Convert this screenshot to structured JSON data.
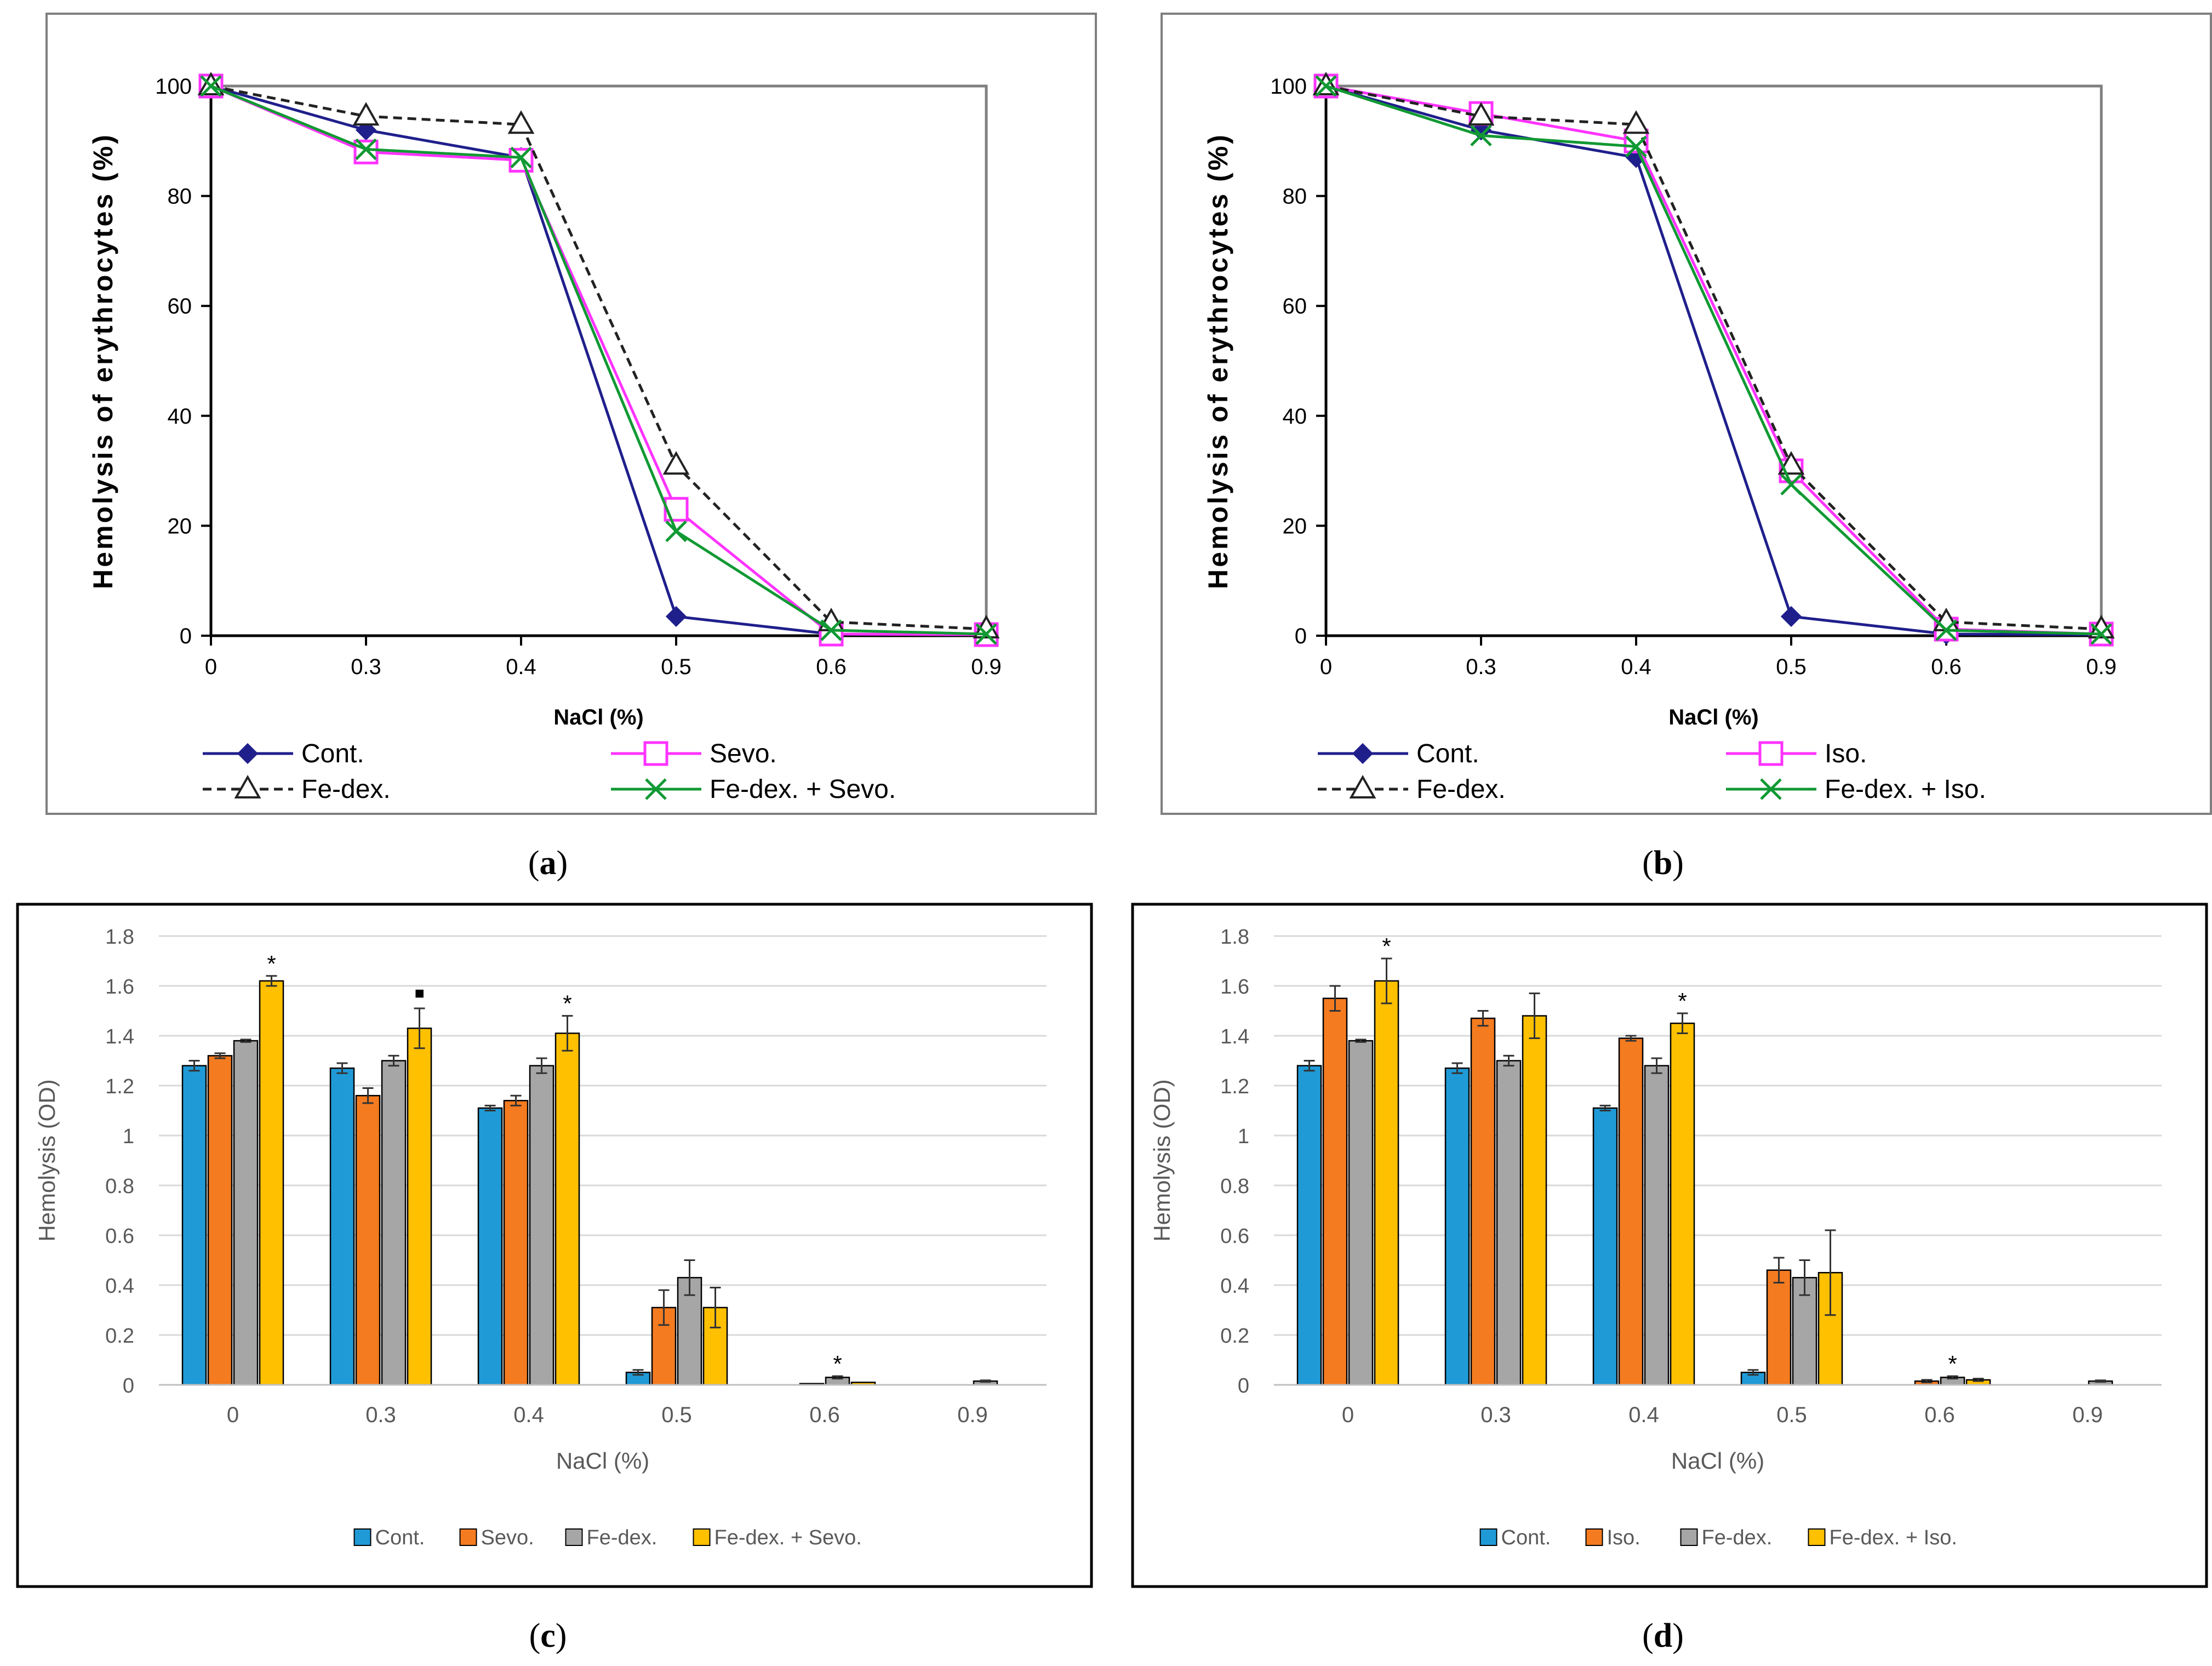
{
  "colors": {
    "cont_line": "#1f1f8c",
    "sevo_line": "#ff33ff",
    "fedex_line": "#222222",
    "combo_line": "#119933",
    "bar_cont": "#1f9ad6",
    "bar_sevo": "#f47b20",
    "bar_fedex": "#a6a6a6",
    "bar_combo": "#ffc000"
  },
  "panels": {
    "a": {
      "caption": "a"
    },
    "b": {
      "caption": "b"
    },
    "c": {
      "caption": "c"
    },
    "d": {
      "caption": "d"
    }
  },
  "chart_data": [
    {
      "id": "a",
      "type": "line",
      "title": "",
      "xlabel": "NaCl (%)",
      "ylabel": "Hemolysis of erythrocytes (%)",
      "categories": [
        "0",
        "0.3",
        "0.4",
        "0.5",
        "0.6",
        "0.9"
      ],
      "ylim": [
        0,
        100
      ],
      "yticks": [
        "0",
        "20",
        "40",
        "60",
        "80",
        "100"
      ],
      "legend_position": "bottom",
      "series": [
        {
          "name": "Cont.",
          "marker": "diamond",
          "style": "solid",
          "values": [
            100,
            92,
            87,
            3.5,
            0.3,
            0.2
          ]
        },
        {
          "name": "Sevo.",
          "marker": "square",
          "style": "solid",
          "values": [
            100,
            88,
            86.5,
            23,
            0.3,
            0.2
          ]
        },
        {
          "name": "Fe-dex.",
          "marker": "triangle",
          "style": "dashed",
          "values": [
            100,
            94.5,
            93,
            31,
            2.5,
            1.2
          ]
        },
        {
          "name": "Fe-dex. + Sevo.",
          "marker": "x",
          "style": "solid",
          "values": [
            100,
            88.5,
            87,
            19,
            1.0,
            0.3
          ]
        }
      ]
    },
    {
      "id": "b",
      "type": "line",
      "title": "",
      "xlabel": "NaCl (%)",
      "ylabel": "Hemolysis of erythrocytes (%)",
      "categories": [
        "0",
        "0.3",
        "0.4",
        "0.5",
        "0.6",
        "0.9"
      ],
      "ylim": [
        0,
        100
      ],
      "yticks": [
        "0",
        "20",
        "40",
        "60",
        "80",
        "100"
      ],
      "legend_position": "bottom",
      "series": [
        {
          "name": "Cont.",
          "marker": "diamond",
          "style": "solid",
          "values": [
            100,
            92,
            87,
            3.5,
            0.3,
            0.2
          ]
        },
        {
          "name": "Iso.",
          "marker": "square",
          "style": "solid",
          "values": [
            100,
            95,
            90,
            30,
            1.2,
            0.3
          ]
        },
        {
          "name": "Fe-dex.",
          "marker": "triangle",
          "style": "dashed",
          "values": [
            100,
            94.5,
            93,
            31,
            2.5,
            1.2
          ]
        },
        {
          "name": "Fe-dex. + Iso.",
          "marker": "x",
          "style": "solid",
          "values": [
            100,
            91,
            89,
            27.5,
            1.0,
            0.3
          ]
        }
      ]
    },
    {
      "id": "c",
      "type": "bar",
      "title": "",
      "xlabel": "NaCl (%)",
      "ylabel": "Hemolysis (OD)",
      "categories": [
        "0",
        "0.3",
        "0.4",
        "0.5",
        "0.6",
        "0.9"
      ],
      "ylim": [
        0,
        1.8
      ],
      "yticks": [
        "0",
        "0.2",
        "0.4",
        "0.6",
        "0.8",
        "1",
        "1.2",
        "1.4",
        "1.6",
        "1.8"
      ],
      "grid": true,
      "legend_position": "bottom",
      "series": [
        {
          "name": "Cont.",
          "values": [
            1.28,
            1.27,
            1.11,
            0.05,
            0,
            0
          ],
          "errors": [
            0.02,
            0.02,
            0.01,
            0.01,
            0,
            0
          ]
        },
        {
          "name": "Sevo.",
          "values": [
            1.32,
            1.16,
            1.14,
            0.31,
            0.005,
            0
          ],
          "errors": [
            0.01,
            0.03,
            0.02,
            0.07,
            0,
            0
          ]
        },
        {
          "name": "Fe-dex.",
          "values": [
            1.38,
            1.3,
            1.28,
            0.43,
            0.03,
            0.015
          ],
          "errors": [
            0.005,
            0.02,
            0.03,
            0.07,
            0.005,
            0.003
          ]
        },
        {
          "name": "Fe-dex. + Sevo.",
          "values": [
            1.62,
            1.43,
            1.41,
            0.31,
            0.01,
            0
          ],
          "errors": [
            0.02,
            0.08,
            0.07,
            0.08,
            0,
            0
          ]
        }
      ],
      "annotations": [
        {
          "category": "0",
          "series": "Fe-dex. + Sevo.",
          "text": "*"
        },
        {
          "category": "0.3",
          "series": "Fe-dex. + Sevo.",
          "text": "■"
        },
        {
          "category": "0.4",
          "series": "Fe-dex. + Sevo.",
          "text": "*"
        },
        {
          "category": "0.6",
          "series": "Fe-dex.",
          "text": "*"
        }
      ]
    },
    {
      "id": "d",
      "type": "bar",
      "title": "",
      "xlabel": "NaCl (%)",
      "ylabel": "Hemolysis (OD)",
      "categories": [
        "0",
        "0.3",
        "0.4",
        "0.5",
        "0.6",
        "0.9"
      ],
      "ylim": [
        0,
        1.8
      ],
      "yticks": [
        "0",
        "0.2",
        "0.4",
        "0.6",
        "0.8",
        "1",
        "1.2",
        "1.4",
        "1.6",
        "1.8"
      ],
      "grid": true,
      "legend_position": "bottom",
      "series": [
        {
          "name": "Cont.",
          "values": [
            1.28,
            1.27,
            1.11,
            0.05,
            0,
            0
          ],
          "errors": [
            0.02,
            0.02,
            0.01,
            0.01,
            0,
            0
          ]
        },
        {
          "name": "Iso.",
          "values": [
            1.55,
            1.47,
            1.39,
            0.46,
            0.015,
            0
          ],
          "errors": [
            0.05,
            0.03,
            0.01,
            0.05,
            0.005,
            0
          ]
        },
        {
          "name": "Fe-dex.",
          "values": [
            1.38,
            1.3,
            1.28,
            0.43,
            0.03,
            0.015
          ],
          "errors": [
            0.005,
            0.02,
            0.03,
            0.07,
            0.005,
            0.003
          ]
        },
        {
          "name": "Fe-dex. + Iso.",
          "values": [
            1.62,
            1.48,
            1.45,
            0.45,
            0.02,
            0
          ],
          "errors": [
            0.09,
            0.09,
            0.04,
            0.17,
            0.005,
            0
          ]
        }
      ],
      "annotations": [
        {
          "category": "0",
          "series": "Fe-dex. + Iso.",
          "text": "*"
        },
        {
          "category": "0.4",
          "series": "Fe-dex. + Iso.",
          "text": "*"
        },
        {
          "category": "0.6",
          "series": "Fe-dex.",
          "text": "*"
        }
      ]
    }
  ]
}
